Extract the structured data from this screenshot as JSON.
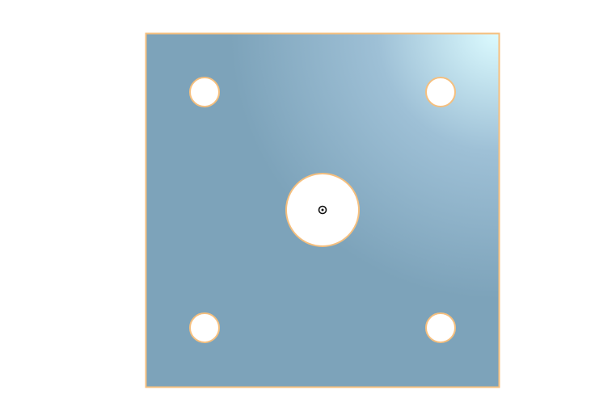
{
  "scene": {
    "view": "top",
    "part": "square-plate",
    "holes": {
      "corner_count": 4,
      "center_count": 1
    },
    "origin_marker": "origin-icon"
  },
  "colors": {
    "background": "#ffffff",
    "plate_base": "#7da3ba",
    "plate_highlight": "#dcfbff",
    "edge": "#f5bf7e",
    "hole_fill": "#ffffff",
    "marker": "#111111"
  }
}
